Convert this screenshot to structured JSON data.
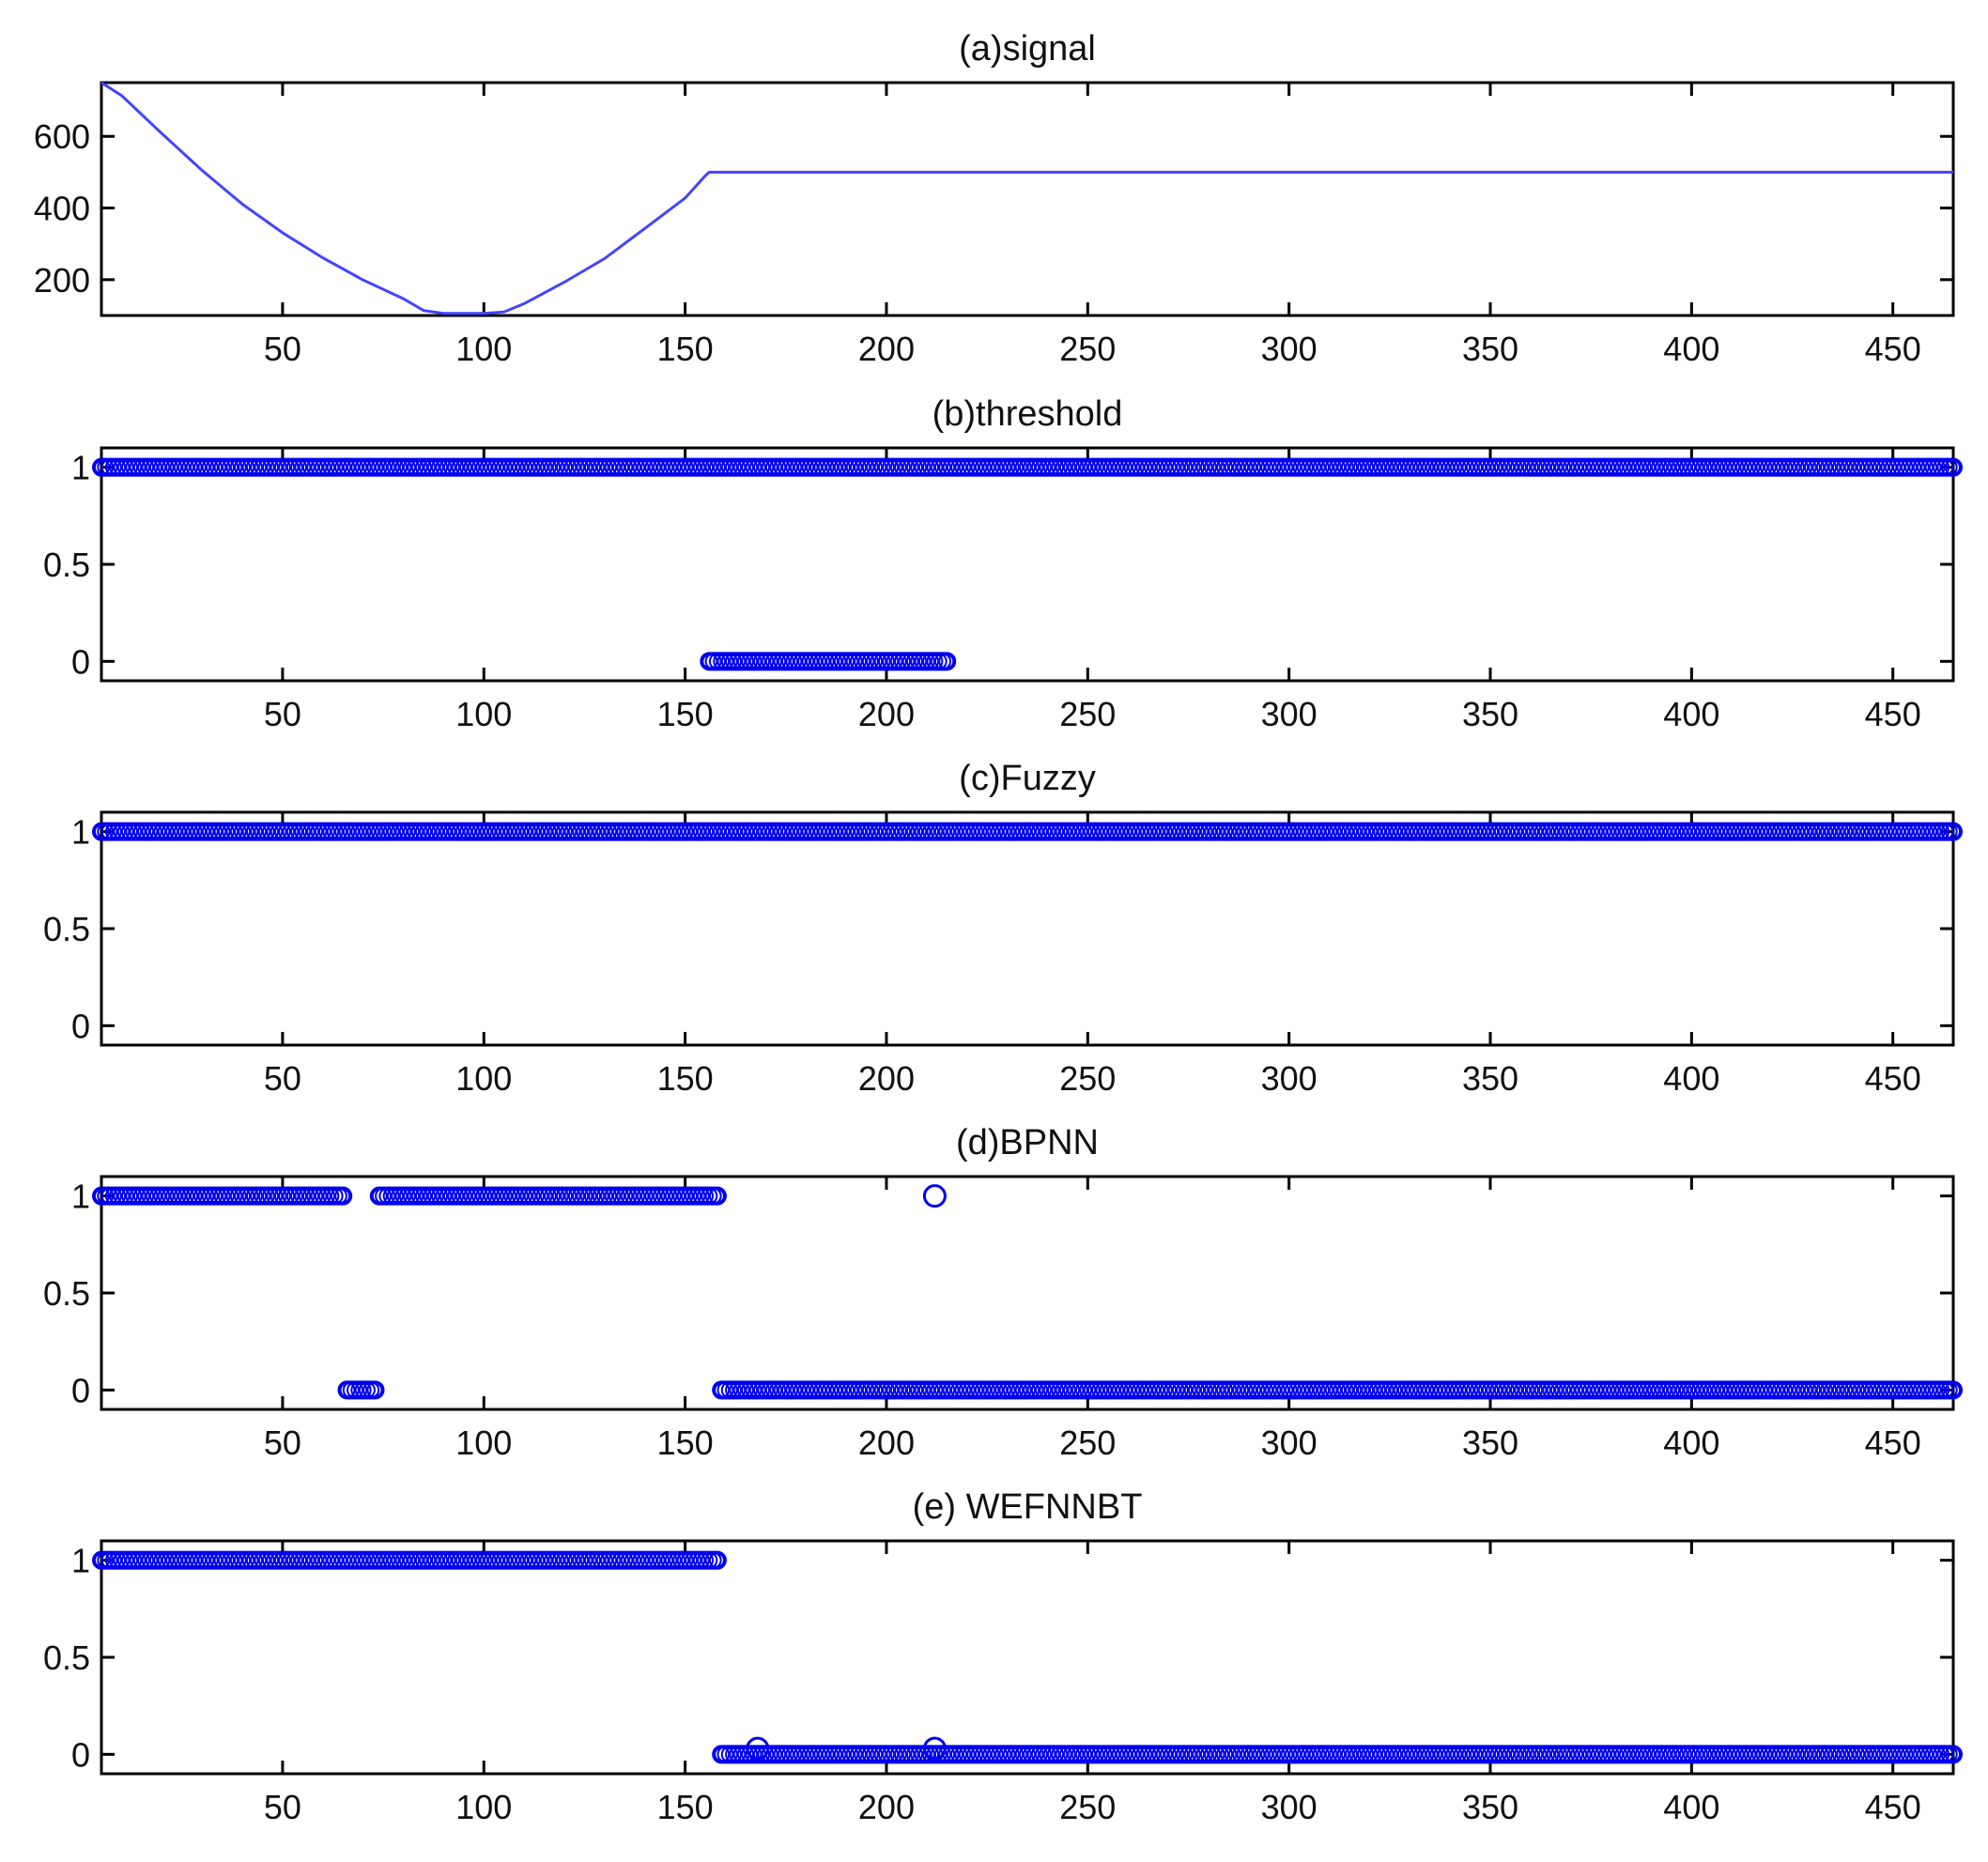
{
  "chart_data": [
    {
      "type": "line",
      "title": "(a)signal",
      "xlim": [
        5,
        465
      ],
      "ylim": [
        100,
        750
      ],
      "xticks": [
        50,
        100,
        150,
        200,
        250,
        300,
        350,
        400,
        450
      ],
      "yticks": [
        200,
        400,
        600
      ],
      "grid": false,
      "color": "#4444ff",
      "series": [
        {
          "x": [
            5,
            10,
            20,
            30,
            40,
            50,
            60,
            70,
            80,
            85,
            90,
            95,
            100,
            105,
            110,
            120,
            130,
            140,
            150,
            155,
            156,
            200,
            250,
            300,
            350,
            400,
            465
          ],
          "y": [
            750,
            714,
            608,
            505,
            411,
            331,
            261,
            199,
            147,
            114,
            106,
            106,
            106,
            110,
            133,
            193,
            259,
            343,
            428,
            490,
            500,
            500,
            500,
            500,
            500,
            500,
            500
          ]
        }
      ]
    },
    {
      "type": "scatter",
      "title": "(b)threshold",
      "xlim": [
        5,
        465
      ],
      "ylim": [
        -0.1,
        1.1
      ],
      "xticks": [
        50,
        100,
        150,
        200,
        250,
        300,
        350,
        400,
        450
      ],
      "yticks": [
        0,
        0.5,
        1
      ],
      "marker": "circle-open",
      "color": "#0000ee",
      "segments": [
        {
          "x_start": 5,
          "x_end": 465,
          "y": 1
        },
        {
          "x_start": 156,
          "x_end": 215,
          "y": 0
        }
      ]
    },
    {
      "type": "scatter",
      "title": "(c)Fuzzy",
      "xlim": [
        5,
        465
      ],
      "ylim": [
        -0.1,
        1.1
      ],
      "xticks": [
        50,
        100,
        150,
        200,
        250,
        300,
        350,
        400,
        450
      ],
      "yticks": [
        0,
        0.5,
        1
      ],
      "marker": "circle-open",
      "color": "#0000ee",
      "segments": [
        {
          "x_start": 5,
          "x_end": 465,
          "y": 1
        }
      ]
    },
    {
      "type": "scatter",
      "title": "(d)BPNN",
      "xlim": [
        5,
        465
      ],
      "ylim": [
        -0.1,
        1.1
      ],
      "xticks": [
        50,
        100,
        150,
        200,
        250,
        300,
        350,
        400,
        450
      ],
      "yticks": [
        0,
        0.5,
        1
      ],
      "marker": "circle-open",
      "color": "#0000ee",
      "segments": [
        {
          "x_start": 5,
          "x_end": 65,
          "y": 1
        },
        {
          "x_start": 74,
          "x_end": 158,
          "y": 1
        },
        {
          "x_start": 66,
          "x_end": 73,
          "y": 0
        },
        {
          "x_start": 159,
          "x_end": 465,
          "y": 0
        }
      ],
      "points": [
        {
          "x": 212,
          "y": 1
        }
      ]
    },
    {
      "type": "scatter",
      "title": "(e) WEFNNBT",
      "xlim": [
        5,
        465
      ],
      "ylim": [
        -0.1,
        1.1
      ],
      "xticks": [
        50,
        100,
        150,
        200,
        250,
        300,
        350,
        400,
        450
      ],
      "yticks": [
        0,
        0.5,
        1
      ],
      "marker": "circle-open",
      "color": "#0000ee",
      "segments": [
        {
          "x_start": 5,
          "x_end": 158,
          "y": 1
        },
        {
          "x_start": 159,
          "x_end": 465,
          "y": 0
        }
      ],
      "points": [
        {
          "x": 168,
          "y": 0.03
        },
        {
          "x": 212,
          "y": 0.03
        }
      ]
    }
  ]
}
